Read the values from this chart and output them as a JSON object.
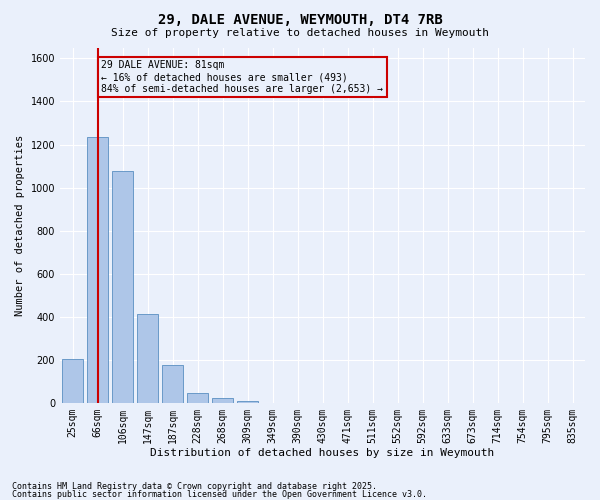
{
  "title": "29, DALE AVENUE, WEYMOUTH, DT4 7RB",
  "subtitle": "Size of property relative to detached houses in Weymouth",
  "xlabel": "Distribution of detached houses by size in Weymouth",
  "ylabel": "Number of detached properties",
  "bar_labels": [
    "25sqm",
    "66sqm",
    "106sqm",
    "147sqm",
    "187sqm",
    "228sqm",
    "268sqm",
    "309sqm",
    "349sqm",
    "390sqm",
    "430sqm",
    "471sqm",
    "511sqm",
    "552sqm",
    "592sqm",
    "633sqm",
    "673sqm",
    "714sqm",
    "754sqm",
    "795sqm",
    "835sqm"
  ],
  "bar_values": [
    205,
    1235,
    1075,
    415,
    175,
    48,
    22,
    12,
    0,
    0,
    0,
    0,
    0,
    0,
    0,
    0,
    0,
    0,
    0,
    0,
    0
  ],
  "bar_color": "#aec6e8",
  "bar_edgecolor": "#5a8fc2",
  "bg_color": "#eaf0fb",
  "grid_color": "#ffffff",
  "redline_x": 1.0,
  "redline_color": "#cc0000",
  "annotation_text": "29 DALE AVENUE: 81sqm\n← 16% of detached houses are smaller (493)\n84% of semi-detached houses are larger (2,653) →",
  "annotation_box_color": "#cc0000",
  "ylim": [
    0,
    1650
  ],
  "yticks": [
    0,
    200,
    400,
    600,
    800,
    1000,
    1200,
    1400,
    1600
  ],
  "footer1": "Contains HM Land Registry data © Crown copyright and database right 2025.",
  "footer2": "Contains public sector information licensed under the Open Government Licence v3.0.",
  "figsize": [
    6.0,
    5.0
  ],
  "dpi": 100,
  "title_fontsize": 10,
  "subtitle_fontsize": 8,
  "xlabel_fontsize": 8,
  "ylabel_fontsize": 7.5,
  "tick_fontsize": 7,
  "annotation_fontsize": 7,
  "footer_fontsize": 6
}
